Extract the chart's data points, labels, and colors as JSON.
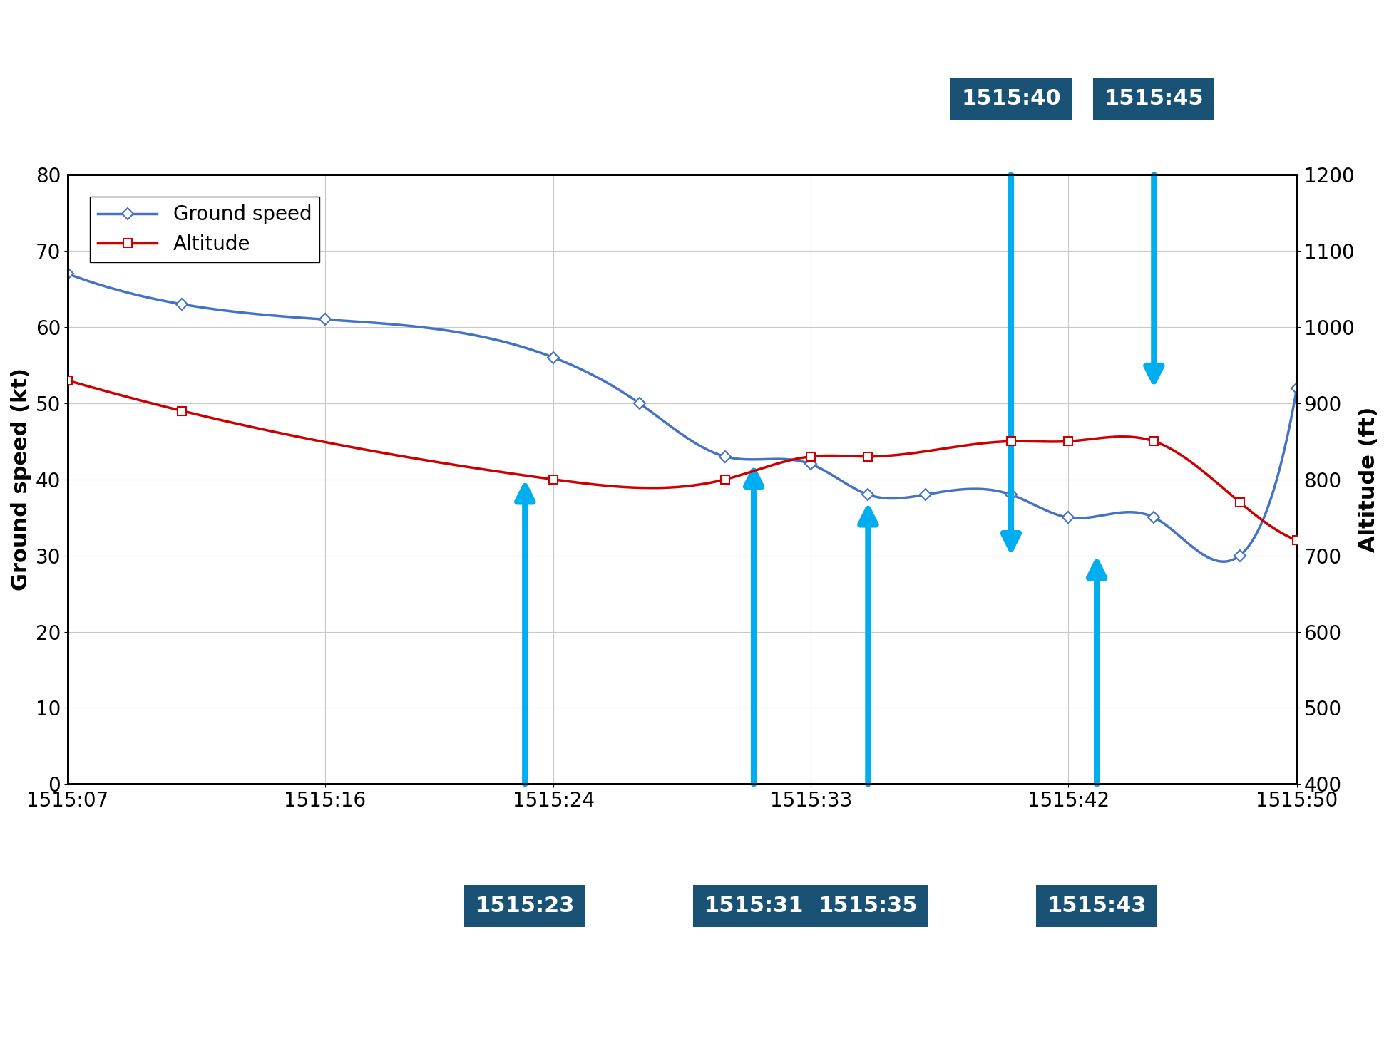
{
  "ylabel_left": "Ground speed (kt)",
  "ylabel_right": "Altitude (ft)",
  "xlim_seconds": [
    0,
    43
  ],
  "ylim_left": [
    0,
    80
  ],
  "ylim_right": [
    400,
    1200
  ],
  "x_tick_labels": [
    "1515:07",
    "1515:16",
    "1515:24",
    "1515:33",
    "1515:42",
    "1515:50"
  ],
  "x_tick_positions": [
    0,
    9,
    17,
    26,
    35,
    43
  ],
  "left_yticks": [
    0,
    10,
    20,
    30,
    40,
    50,
    60,
    70,
    80
  ],
  "right_yticks": [
    400,
    500,
    600,
    700,
    800,
    900,
    1000,
    1100,
    1200
  ],
  "ground_speed_times": [
    0,
    4,
    9,
    17,
    20,
    23,
    26,
    28,
    30,
    33,
    35,
    38,
    41,
    43
  ],
  "ground_speed_values": [
    67,
    63,
    61,
    56,
    50,
    43,
    42,
    38,
    38,
    38,
    35,
    35,
    30,
    52
  ],
  "altitude_times_ft": [
    0,
    4,
    17,
    23,
    26,
    28,
    33,
    35,
    38,
    41,
    43
  ],
  "altitude_values_ft": [
    930,
    890,
    800,
    800,
    830,
    830,
    850,
    850,
    850,
    770,
    720
  ],
  "gs_color": "#4472C4",
  "alt_color": "#CC0000",
  "arrow_color": "#00AEEF",
  "annotation_bg_color": "#1A5276",
  "annotation_text_color": "#FFFFFF",
  "background_color": "#FFFFFF",
  "grid_color": "#C8C8C8",
  "annotations": [
    {
      "label": "1515:23",
      "x": 16,
      "direction": "up",
      "label_pos": "bottom"
    },
    {
      "label": "1515:31",
      "x": 24,
      "direction": "up",
      "label_pos": "bottom"
    },
    {
      "label": "1515:35",
      "x": 28,
      "direction": "up",
      "label_pos": "bottom"
    },
    {
      "label": "1515:40",
      "x": 33,
      "direction": "down",
      "label_pos": "top"
    },
    {
      "label": "1515:43",
      "x": 36,
      "direction": "up",
      "label_pos": "bottom"
    },
    {
      "label": "1515:45",
      "x": 38,
      "direction": "down",
      "label_pos": "top"
    }
  ]
}
